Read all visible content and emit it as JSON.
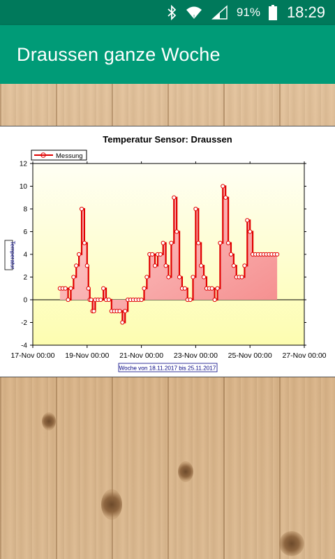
{
  "status_bar": {
    "icons": [
      "bluetooth-icon",
      "wifi-icon",
      "cell-signal-icon",
      "battery-icon"
    ],
    "battery": "91%",
    "time": "18:29",
    "color": "#00795b"
  },
  "app_bar": {
    "title": "Draussen ganze Woche",
    "color": "#009b77"
  },
  "chart_data": {
    "type": "area",
    "title": "Temperatur Sensor: Draussen",
    "xlabel": "Woche von 18.11.2017 bis 25.11.2017",
    "ylabel": "Temperatur",
    "legend": {
      "entries": [
        "Messung"
      ],
      "placement": "top-left"
    },
    "ylim": [
      -4,
      12
    ],
    "yticks": [
      -4,
      -2,
      0,
      2,
      4,
      6,
      8,
      10,
      12
    ],
    "x_tick_labels": [
      "17-Nov 00:00",
      "19-Nov 00:00",
      "21-Nov 00:00",
      "23-Nov 00:00",
      "25-Nov 00:00",
      "27-Nov 00:00"
    ],
    "x_unit": "days since 17-Nov 00:00",
    "xlim": [
      0,
      10
    ],
    "grid": false,
    "series_color": "#e00000",
    "x": [
      1.0,
      1.1,
      1.2,
      1.3,
      1.4,
      1.5,
      1.6,
      1.7,
      1.8,
      1.9,
      2.0,
      2.05,
      2.1,
      2.15,
      2.2,
      2.25,
      2.3,
      2.4,
      2.5,
      2.6,
      2.7,
      2.8,
      2.9,
      3.0,
      3.1,
      3.2,
      3.3,
      3.4,
      3.5,
      3.6,
      3.7,
      3.8,
      3.9,
      4.0,
      4.1,
      4.2,
      4.3,
      4.4,
      4.5,
      4.6,
      4.7,
      4.8,
      4.9,
      5.0,
      5.1,
      5.2,
      5.3,
      5.4,
      5.5,
      5.6,
      5.7,
      5.8,
      5.9,
      6.0,
      6.1,
      6.2,
      6.3,
      6.4,
      6.5,
      6.6,
      6.7,
      6.8,
      6.9,
      7.0,
      7.1,
      7.2,
      7.3,
      7.4,
      7.5,
      7.6,
      7.7,
      7.8,
      7.9,
      8.0,
      8.1,
      8.2,
      8.3,
      8.4,
      8.5,
      8.6,
      8.7,
      8.8,
      8.9,
      9.0
    ],
    "y": [
      1,
      1,
      1,
      0,
      1,
      2,
      3,
      4,
      8,
      5,
      3,
      1,
      0,
      0,
      -1,
      -1,
      0,
      0,
      0,
      1,
      0,
      0,
      -1,
      -1,
      -1,
      -1,
      -2,
      -1,
      0,
      0,
      0,
      0,
      0,
      0,
      1,
      2,
      4,
      4,
      3,
      4,
      4,
      5,
      3,
      2,
      5,
      9,
      6,
      2,
      1,
      1,
      0,
      0,
      2,
      8,
      5,
      3,
      2,
      1,
      1,
      1,
      0,
      1,
      5,
      10,
      9,
      5,
      4,
      3,
      2,
      2,
      2,
      3,
      7,
      6,
      4,
      4,
      4,
      4,
      4,
      4,
      4,
      4,
      4,
      4
    ]
  }
}
